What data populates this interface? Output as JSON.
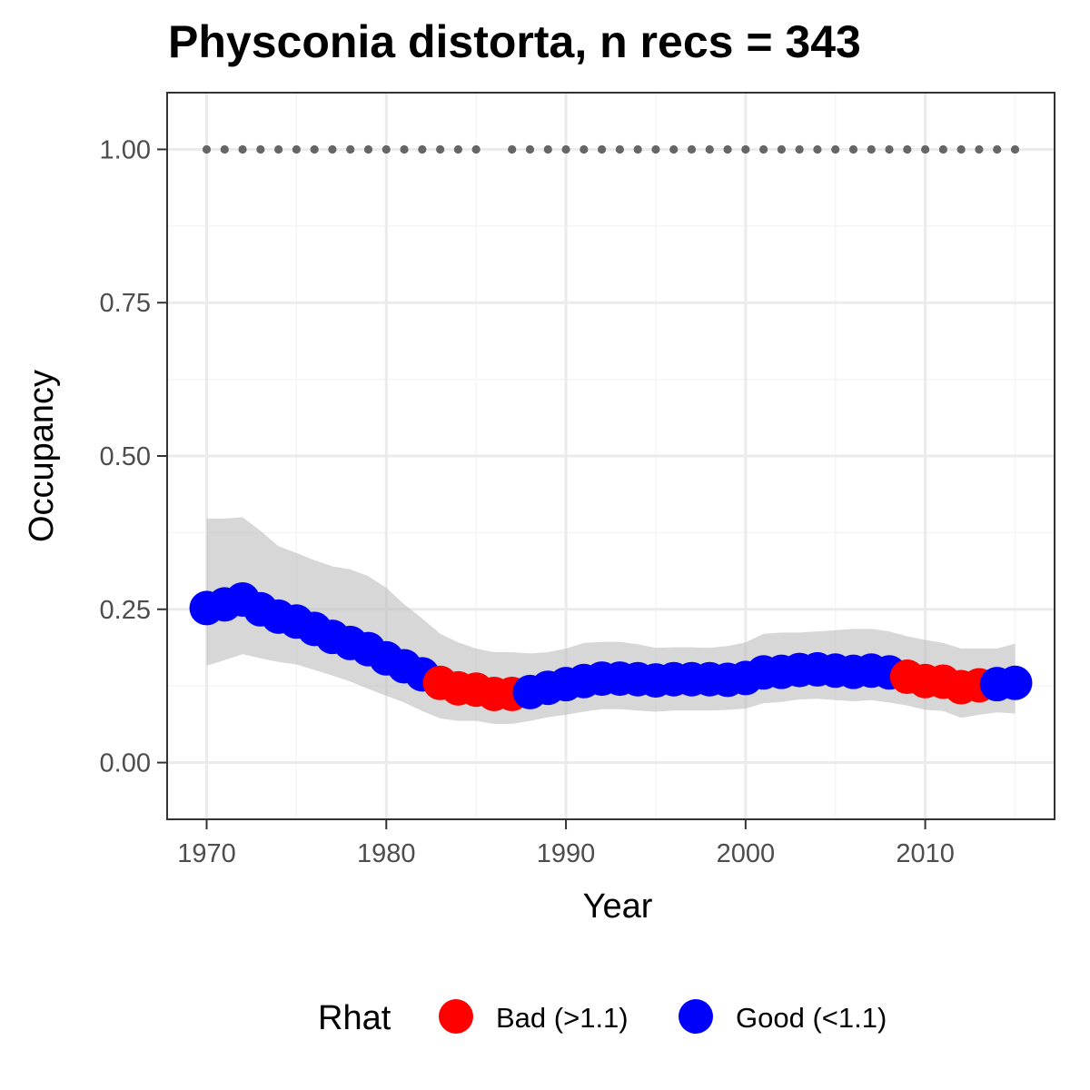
{
  "chart_data": {
    "type": "line",
    "title": "Physconia distorta, n recs = 343",
    "xlabel": "Year",
    "ylabel": "Occupancy",
    "xlim": [
      1967.8,
      1717.2
    ],
    "ylim": [
      -0.0925,
      1.0925
    ],
    "x_ticks": [
      1970,
      1980,
      1990,
      2000,
      2010
    ],
    "x_tick_labels": [
      "1970",
      "1980",
      "1990",
      "2000",
      "2010"
    ],
    "y_ticks": [
      0,
      0.25,
      0.5,
      0.75,
      1
    ],
    "y_tick_labels": [
      "0.00",
      "0.25",
      "0.50",
      "0.75",
      "1.00"
    ],
    "grid": true,
    "years": [
      1970,
      1971,
      1972,
      1973,
      1974,
      1975,
      1976,
      1977,
      1978,
      1979,
      1980,
      1981,
      1982,
      1983,
      1984,
      1985,
      1986,
      1987,
      1988,
      1989,
      1990,
      1991,
      1992,
      1993,
      1994,
      1995,
      1996,
      1997,
      1998,
      1999,
      2000,
      2001,
      2002,
      2003,
      2004,
      2005,
      2006,
      2007,
      2008,
      2009,
      2010,
      2011,
      2012,
      2013,
      2014,
      2015
    ],
    "series": [
      {
        "values": [
          0.252,
          0.258,
          0.266,
          0.25,
          0.238,
          0.23,
          0.218,
          0.205,
          0.195,
          0.185,
          0.17,
          0.157,
          0.144,
          0.13,
          0.121,
          0.119,
          0.112,
          0.112,
          0.115,
          0.122,
          0.128,
          0.133,
          0.137,
          0.137,
          0.136,
          0.134,
          0.136,
          0.136,
          0.136,
          0.135,
          0.138,
          0.147,
          0.148,
          0.151,
          0.152,
          0.15,
          0.148,
          0.15,
          0.147,
          0.14,
          0.133,
          0.132,
          0.123,
          0.126,
          0.128,
          0.13
        ],
        "upper": [
          0.398,
          0.398,
          0.4,
          0.378,
          0.353,
          0.342,
          0.33,
          0.32,
          0.315,
          0.304,
          0.285,
          0.258,
          0.235,
          0.21,
          0.196,
          0.186,
          0.18,
          0.18,
          0.178,
          0.18,
          0.186,
          0.195,
          0.197,
          0.197,
          0.193,
          0.187,
          0.188,
          0.188,
          0.187,
          0.19,
          0.196,
          0.21,
          0.212,
          0.212,
          0.214,
          0.216,
          0.218,
          0.218,
          0.214,
          0.206,
          0.2,
          0.195,
          0.186,
          0.186,
          0.186,
          0.194
        ],
        "lower": [
          0.158,
          0.167,
          0.177,
          0.17,
          0.164,
          0.16,
          0.151,
          0.142,
          0.132,
          0.12,
          0.109,
          0.098,
          0.084,
          0.072,
          0.068,
          0.068,
          0.063,
          0.063,
          0.068,
          0.074,
          0.078,
          0.083,
          0.087,
          0.087,
          0.085,
          0.083,
          0.085,
          0.085,
          0.085,
          0.086,
          0.088,
          0.097,
          0.099,
          0.103,
          0.104,
          0.102,
          0.1,
          0.102,
          0.098,
          0.093,
          0.086,
          0.084,
          0.073,
          0.078,
          0.082,
          0.08
        ],
        "rhat": [
          "Good",
          "Good",
          "Good",
          "Good",
          "Good",
          "Good",
          "Good",
          "Good",
          "Good",
          "Good",
          "Good",
          "Good",
          "Good",
          "Bad",
          "Bad",
          "Bad",
          "Bad",
          "Bad",
          "Good",
          "Good",
          "Good",
          "Good",
          "Good",
          "Good",
          "Good",
          "Good",
          "Good",
          "Good",
          "Good",
          "Good",
          "Good",
          "Good",
          "Good",
          "Good",
          "Good",
          "Good",
          "Good",
          "Good",
          "Good",
          "Bad",
          "Bad",
          "Bad",
          "Bad",
          "Bad",
          "Good",
          "Good"
        ]
      }
    ],
    "record_years": [
      1970,
      1971,
      1972,
      1973,
      1974,
      1975,
      1976,
      1977,
      1978,
      1979,
      1980,
      1981,
      1982,
      1983,
      1984,
      1985,
      1987,
      1988,
      1989,
      1990,
      1991,
      1992,
      1993,
      1994,
      1995,
      1996,
      1997,
      1998,
      1999,
      2000,
      2001,
      2002,
      2003,
      2004,
      2005,
      2006,
      2007,
      2008,
      2009,
      2010,
      2011,
      2012,
      2013,
      2014,
      2015
    ],
    "record_value": 1.0,
    "legend": {
      "title": "Rhat",
      "position": "bottom",
      "items": [
        {
          "key": "Bad",
          "label": "Bad (>1.1)",
          "color": "#ff0000"
        },
        {
          "key": "Good",
          "label": "Good (<1.1)",
          "color": "#0000ff"
        }
      ]
    },
    "colors": {
      "ribbon": "#bebebe",
      "record_points": "#666666",
      "panel_border": "#333333",
      "grid_major": "#ebebeb",
      "grid_minor": "#f5f5f5"
    }
  }
}
